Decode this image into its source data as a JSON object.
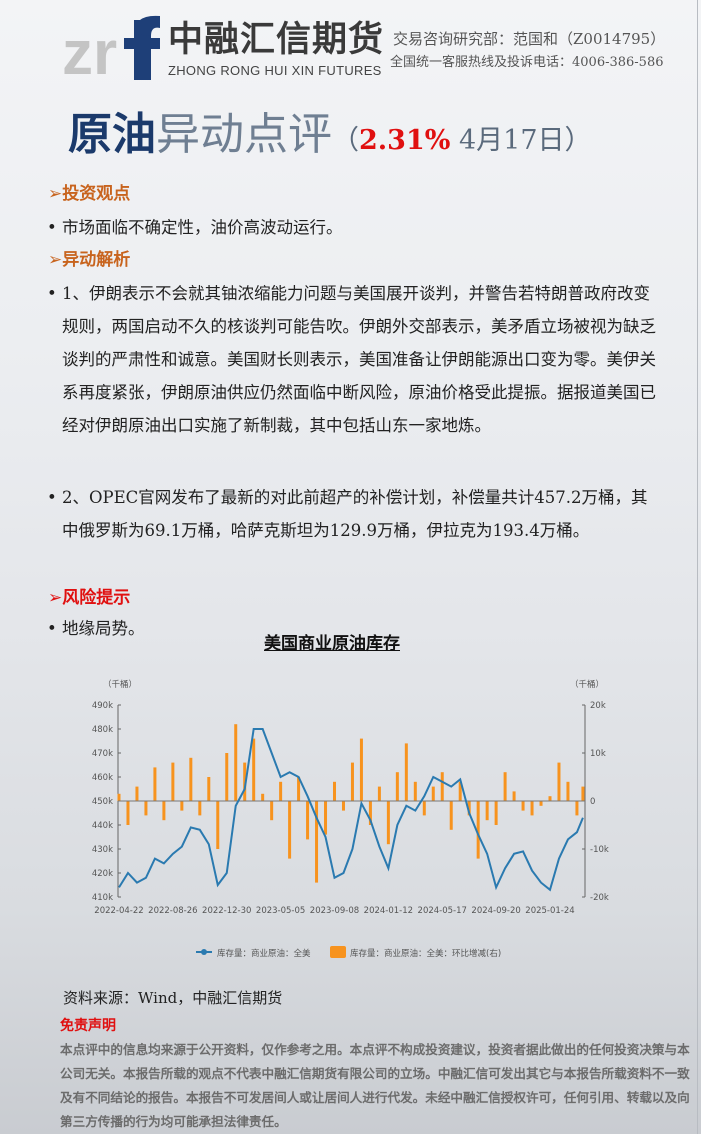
{
  "header": {
    "logo_text_cn": "中融汇信期货",
    "logo_text_en": "ZHONG RONG HUI XIN FUTURES",
    "logo_mark": "zrf",
    "contact_line1": "交易咨询研究部：范国和（Z0014795）",
    "contact_line2": "全国统一客服热线及投诉电话：4006-386-586"
  },
  "title": {
    "part1": "原油",
    "part2": "异动点评",
    "open": "（",
    "change": "2.31%",
    "date": " 4月17日",
    "close": "）"
  },
  "sections": [
    {
      "heading": "投资观点",
      "icon": "arrow-right-icon",
      "bullets": [
        "市场面临不确定性，油价高波动运行。"
      ]
    },
    {
      "heading": "异动解析",
      "icon": "arrow-right-icon",
      "bullets": [
        "1、伊朗表示不会就其铀浓缩能力问题与美国展开谈判，并警告若特朗普政府改变规则，两国启动不久的核谈判可能告吹。伊朗外交部表示，美矛盾立场被视为缺乏谈判的严肃性和诚意。美国财长则表示，美国准备让伊朗能源出口变为零。美伊关系再度紧张，伊朗原油供应仍然面临中断风险，原油价格受此提振。据报道美国已经对伊朗原油出口实施了新制裁，其中包括山东一家地炼。",
        "2、OPEC官网发布了最新的对此前超产的补偿计划，补偿量共计457.2万桶，其中俄罗斯为69.1万桶，哈萨克斯坦为129.9万桶，伊拉克为193.4万桶。"
      ]
    },
    {
      "heading": "风险提示",
      "icon": "arrow-right-icon",
      "bullets": [
        "地缘局势。"
      ]
    }
  ],
  "bullet_char": "•",
  "chart_data": {
    "type": "line+bar",
    "title": "美国商业原油库存",
    "ylabel_left": "（千桶）",
    "ylabel_right": "（千桶）",
    "ylim_left": [
      410,
      490
    ],
    "ylim_right": [
      -20,
      20
    ],
    "yticks_left": [
      "410k",
      "420k",
      "430k",
      "440k",
      "450k",
      "460k",
      "470k",
      "480k",
      "490k"
    ],
    "yticks_right": [
      "-20k",
      "-10k",
      "0",
      "10k",
      "20k"
    ],
    "xticks": [
      "2022-04-22",
      "2022-08-26",
      "2022-12-30",
      "2023-05-05",
      "2023-09-08",
      "2024-01-12",
      "2024-05-17",
      "2024-09-20",
      "2025-01-24"
    ],
    "grid": false,
    "legend_placement": "bottom",
    "colors": {
      "line": "#2a7ab0",
      "bar": "#f7931e"
    },
    "series": [
      {
        "name": "库存量：商业原油：全美",
        "kind": "line",
        "axis": "left",
        "points": [
          [
            "2022-04-22",
            414
          ],
          [
            "2022-05-13",
            420
          ],
          [
            "2022-06-03",
            416
          ],
          [
            "2022-06-24",
            418
          ],
          [
            "2022-07-15",
            426
          ],
          [
            "2022-08-05",
            424
          ],
          [
            "2022-08-26",
            428
          ],
          [
            "2022-09-16",
            431
          ],
          [
            "2022-10-07",
            439
          ],
          [
            "2022-10-28",
            438
          ],
          [
            "2022-11-18",
            432
          ],
          [
            "2022-12-09",
            415
          ],
          [
            "2022-12-30",
            420
          ],
          [
            "2023-01-20",
            448
          ],
          [
            "2023-02-10",
            455
          ],
          [
            "2023-03-03",
            480
          ],
          [
            "2023-03-24",
            480
          ],
          [
            "2023-04-14",
            470
          ],
          [
            "2023-05-05",
            460
          ],
          [
            "2023-05-26",
            462
          ],
          [
            "2023-06-16",
            460
          ],
          [
            "2023-07-07",
            452
          ],
          [
            "2023-07-28",
            443
          ],
          [
            "2023-08-18",
            435
          ],
          [
            "2023-09-08",
            418
          ],
          [
            "2023-09-29",
            420
          ],
          [
            "2023-10-20",
            430
          ],
          [
            "2023-11-10",
            449
          ],
          [
            "2023-12-01",
            442
          ],
          [
            "2023-12-22",
            431
          ],
          [
            "2024-01-12",
            422
          ],
          [
            "2024-02-02",
            440
          ],
          [
            "2024-02-23",
            448
          ],
          [
            "2024-03-15",
            446
          ],
          [
            "2024-04-05",
            452
          ],
          [
            "2024-04-26",
            460
          ],
          [
            "2024-05-17",
            458
          ],
          [
            "2024-06-07",
            456
          ],
          [
            "2024-06-28",
            459
          ],
          [
            "2024-07-19",
            445
          ],
          [
            "2024-08-09",
            436
          ],
          [
            "2024-08-30",
            428
          ],
          [
            "2024-09-20",
            414
          ],
          [
            "2024-10-11",
            422
          ],
          [
            "2024-11-01",
            428
          ],
          [
            "2024-11-22",
            429
          ],
          [
            "2024-12-13",
            421
          ],
          [
            "2025-01-03",
            416
          ],
          [
            "2025-01-24",
            413
          ],
          [
            "2025-02-14",
            426
          ],
          [
            "2025-03-07",
            434
          ],
          [
            "2025-03-28",
            437
          ],
          [
            "2025-04-11",
            443
          ]
        ]
      },
      {
        "name": "库存量：商业原油：全美：环比增减(右)",
        "kind": "bar",
        "axis": "right",
        "points": [
          [
            "2022-04-22",
            1.5
          ],
          [
            "2022-05-13",
            -5
          ],
          [
            "2022-06-03",
            3
          ],
          [
            "2022-06-24",
            -3
          ],
          [
            "2022-07-15",
            7
          ],
          [
            "2022-08-05",
            -4
          ],
          [
            "2022-08-26",
            8
          ],
          [
            "2022-09-16",
            -2
          ],
          [
            "2022-10-07",
            9
          ],
          [
            "2022-10-28",
            -3
          ],
          [
            "2022-11-18",
            5
          ],
          [
            "2022-12-09",
            -10
          ],
          [
            "2022-12-30",
            10
          ],
          [
            "2023-01-20",
            16
          ],
          [
            "2023-02-10",
            8
          ],
          [
            "2023-03-03",
            13
          ],
          [
            "2023-03-24",
            1.5
          ],
          [
            "2023-04-14",
            -4
          ],
          [
            "2023-05-05",
            4
          ],
          [
            "2023-05-26",
            -12
          ],
          [
            "2023-06-16",
            5
          ],
          [
            "2023-07-07",
            -8
          ],
          [
            "2023-07-28",
            -17
          ],
          [
            "2023-08-18",
            -7
          ],
          [
            "2023-09-08",
            4
          ],
          [
            "2023-09-29",
            -2
          ],
          [
            "2023-10-20",
            8
          ],
          [
            "2023-11-10",
            13
          ],
          [
            "2023-12-01",
            -5
          ],
          [
            "2023-12-22",
            3
          ],
          [
            "2024-01-12",
            -9
          ],
          [
            "2024-02-02",
            6
          ],
          [
            "2024-02-23",
            12
          ],
          [
            "2024-03-15",
            4
          ],
          [
            "2024-04-05",
            -3
          ],
          [
            "2024-04-26",
            3
          ],
          [
            "2024-05-17",
            6
          ],
          [
            "2024-06-07",
            -6
          ],
          [
            "2024-06-28",
            4
          ],
          [
            "2024-07-19",
            -3
          ],
          [
            "2024-08-09",
            -12
          ],
          [
            "2024-08-30",
            -4
          ],
          [
            "2024-09-20",
            -5
          ],
          [
            "2024-10-11",
            6
          ],
          [
            "2024-11-01",
            2
          ],
          [
            "2024-11-22",
            -2
          ],
          [
            "2024-12-13",
            -3
          ],
          [
            "2025-01-03",
            -1
          ],
          [
            "2025-01-24",
            1
          ],
          [
            "2025-02-14",
            8
          ],
          [
            "2025-03-07",
            4
          ],
          [
            "2025-03-28",
            -3
          ],
          [
            "2025-04-11",
            3
          ]
        ]
      }
    ]
  },
  "source": "资料来源：Wind，中融汇信期货",
  "disclaimer": {
    "title": "免责声明",
    "text": "本点评中的信息均来源于公开资料，仅作参考之用。本点评不构成投资建议，投资者据此做出的任何投资决策与本公司无关。本报告所载的观点不代表中融汇信期货有限公司的立场。中融汇信可发出其它与本报告所载资料不一致及有不同结论的报告。本报告不可发居间人或让居间人进行代发。未经中融汇信授权许可，任何引用、转载以及向第三方传播的行为均可能承担法律责任。"
  }
}
